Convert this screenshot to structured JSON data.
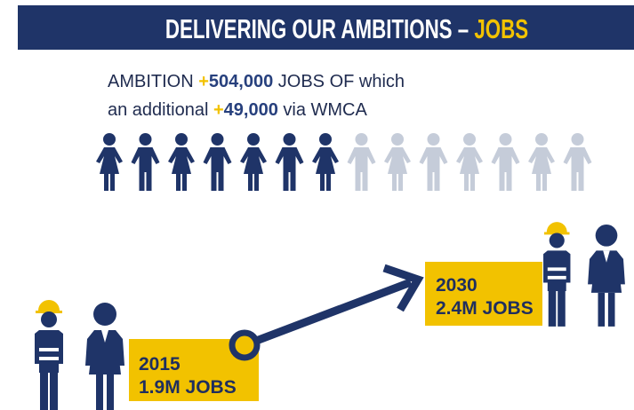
{
  "header": {
    "title": "DELIVERING OUR AMBITIONS – ",
    "highlight": "JOBS"
  },
  "ambition": {
    "line1": {
      "before": "AMBITION ",
      "sign": "+",
      "number": "504,000",
      "after": " JOBS OF which"
    },
    "line2": {
      "before": "an additional ",
      "sign": "+",
      "number": "49,000",
      "after": " via WMCA"
    }
  },
  "milestones": [
    {
      "year": "2015",
      "jobs": "1.9M JOBS"
    },
    {
      "year": "2030",
      "jobs": "2.4M JOBS"
    }
  ]
}
